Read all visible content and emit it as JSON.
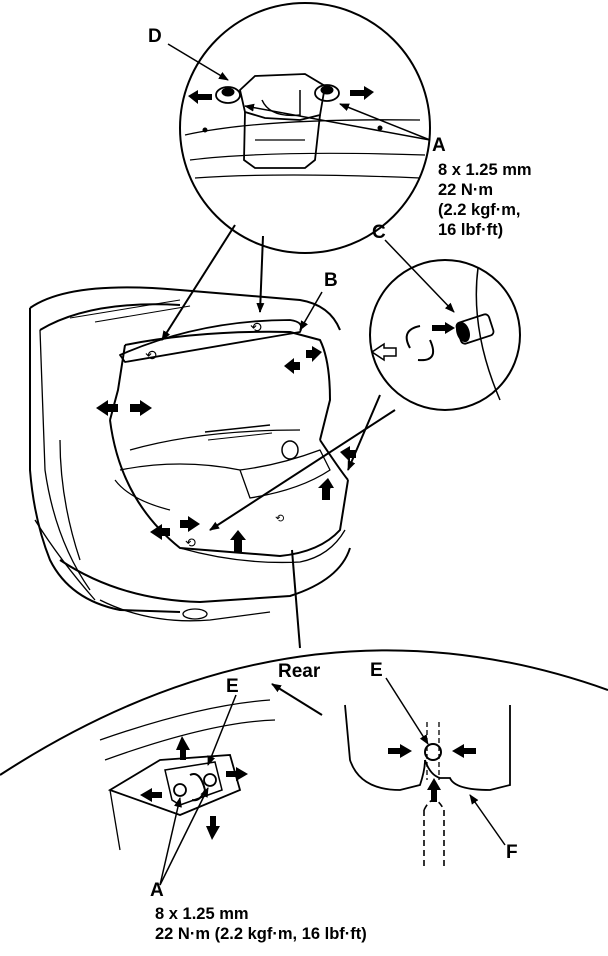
{
  "labels": {
    "D": "D",
    "A_top": "A",
    "B": "B",
    "C": "C",
    "E_left": "E",
    "E_right": "E",
    "F": "F",
    "A_bottom": "A",
    "rear": "Rear"
  },
  "specs": {
    "top": [
      "8 x 1.25 mm",
      "22 N·m",
      "(2.2 kgf·m,",
      "16 lbf·ft)"
    ],
    "bottom": [
      "8 x 1.25 mm",
      "22 N·m (2.2 kgf·m, 16 lbf·ft)"
    ]
  },
  "colors": {
    "ink": "#000000",
    "paper": "#ffffff"
  }
}
